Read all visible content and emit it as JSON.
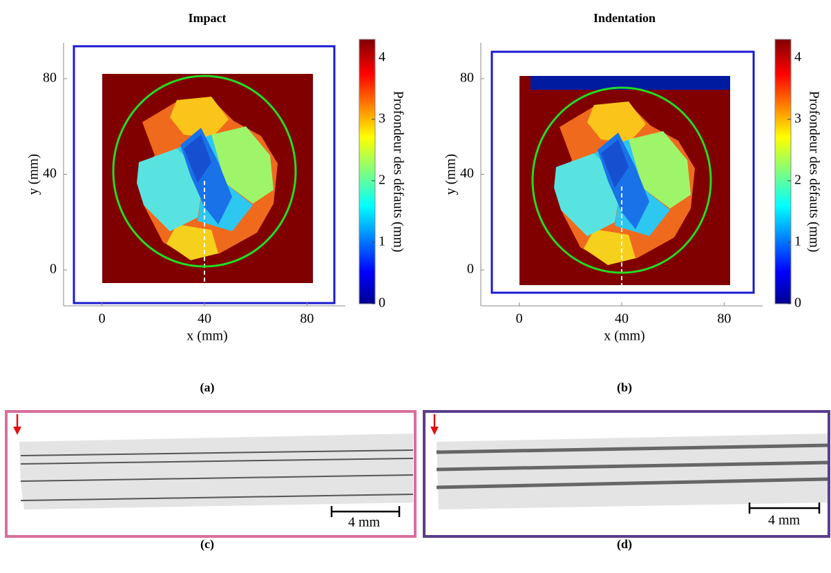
{
  "panels": [
    {
      "title": "Impact",
      "caption": "(a)",
      "x_label": "x (mm)",
      "y_label": "y (mm)",
      "xlim": [
        -15,
        95
      ],
      "ylim": [
        -15,
        95
      ],
      "xticks": [
        0,
        40,
        80
      ],
      "yticks": [
        0,
        40,
        80
      ],
      "colorbar": {
        "label": "Profondeur des défauts (mm)",
        "lim": [
          0,
          4.3
        ],
        "ticks": [
          0,
          1,
          2,
          3,
          4
        ]
      }
    },
    {
      "title": "Indentation",
      "caption": "(b)",
      "x_label": "x (mm)",
      "y_label": "y (mm)",
      "xlim": [
        -15,
        95
      ],
      "ylim": [
        -15,
        95
      ],
      "xticks": [
        0,
        40,
        80
      ],
      "yticks": [
        0,
        40,
        80
      ],
      "colorbar": {
        "label": "Profondeur des défauts (mm)",
        "lim": [
          0,
          4.3
        ],
        "ticks": [
          0,
          1,
          2,
          3,
          4
        ]
      }
    }
  ],
  "images": [
    {
      "caption": "(c)",
      "scale_bar": "4 mm"
    },
    {
      "caption": "(d)",
      "scale_bar": "4 mm"
    }
  ]
}
